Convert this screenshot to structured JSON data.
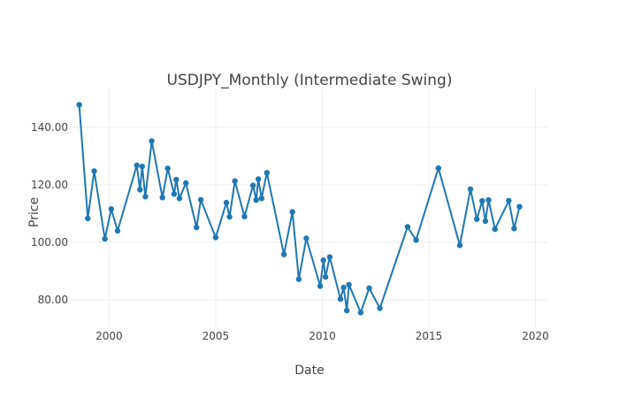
{
  "chart_data": {
    "type": "line",
    "title": "USDJPY_Monthly (Intermediate Swing)",
    "xlabel": "Date",
    "ylabel": "Price",
    "xlim": [
      1998.2,
      2020.6
    ],
    "ylim": [
      70.5,
      153.5
    ],
    "x_ticks": [
      2000,
      2005,
      2010,
      2015,
      2020
    ],
    "x_tick_labels": [
      "2000",
      "2005",
      "2010",
      "2015",
      "2020"
    ],
    "y_ticks": [
      80,
      100,
      120,
      140
    ],
    "y_tick_labels": [
      "80.00",
      "100.00",
      "120.00",
      "140.00"
    ],
    "grid": true,
    "series": [
      {
        "color": "#1f77b4",
        "mode": "lines+markers",
        "x": [
          1998.6,
          1999.0,
          1999.3,
          1999.8,
          2000.1,
          2000.4,
          2001.3,
          2001.45,
          2001.55,
          2001.7,
          2002.0,
          2002.5,
          2002.75,
          2003.05,
          2003.15,
          2003.3,
          2003.6,
          2004.1,
          2004.3,
          2005.0,
          2005.5,
          2005.65,
          2005.9,
          2006.35,
          2006.75,
          2006.9,
          2007.0,
          2007.15,
          2007.4,
          2008.2,
          2008.6,
          2008.9,
          2009.25,
          2009.9,
          2010.05,
          2010.15,
          2010.35,
          2010.85,
          2011.0,
          2011.15,
          2011.25,
          2011.8,
          2012.2,
          2012.7,
          2014.0,
          2014.4,
          2015.45,
          2016.45,
          2016.95,
          2017.25,
          2017.5,
          2017.65,
          2017.8,
          2018.1,
          2018.75,
          2019.0,
          2019.25
        ],
        "y": [
          147.8,
          108.3,
          124.8,
          101.2,
          111.6,
          104.0,
          126.8,
          118.3,
          126.4,
          115.9,
          135.2,
          115.6,
          125.7,
          116.8,
          121.8,
          115.3,
          120.6,
          105.2,
          114.8,
          101.7,
          113.8,
          108.9,
          121.3,
          109.0,
          119.8,
          114.7,
          122.0,
          115.3,
          124.2,
          95.8,
          110.6,
          87.2,
          101.4,
          84.8,
          93.8,
          88.0,
          94.9,
          80.3,
          84.3,
          76.3,
          85.3,
          75.6,
          84.1,
          77.1,
          105.4,
          100.8,
          125.8,
          99.0,
          118.5,
          108.1,
          114.4,
          107.4,
          114.7,
          104.6,
          114.5,
          104.8,
          112.4
        ]
      }
    ]
  }
}
